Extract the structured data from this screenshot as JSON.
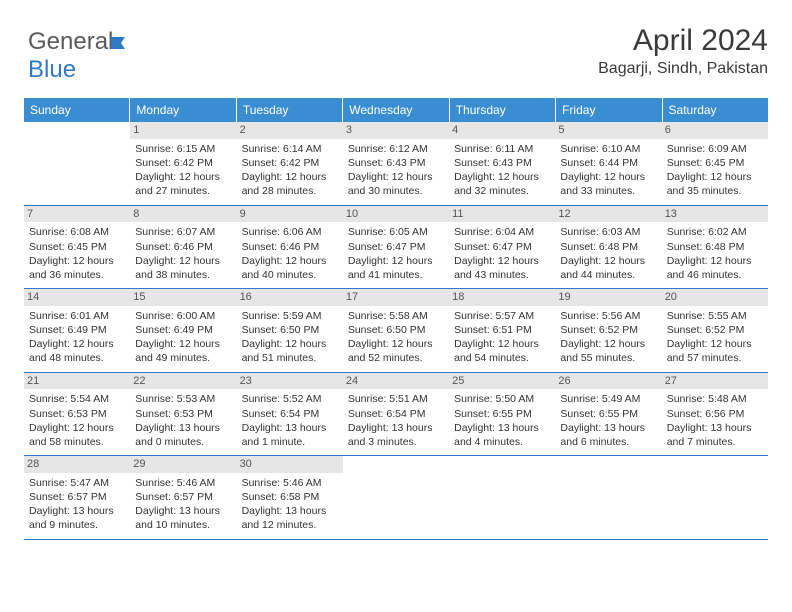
{
  "logo": {
    "part1": "General",
    "part2": "Blue"
  },
  "header": {
    "title": "April 2024",
    "location": "Bagarji, Sindh, Pakistan"
  },
  "colors": {
    "header_bg": "#3a8dd0",
    "daynum_bg": "#e6e6e6",
    "border": "#2f7ac5",
    "logo_blue": "#2f7ac5"
  },
  "day_names": [
    "Sunday",
    "Monday",
    "Tuesday",
    "Wednesday",
    "Thursday",
    "Friday",
    "Saturday"
  ],
  "weeks": [
    [
      {
        "n": "",
        "sr": "",
        "ss": "",
        "dl": ""
      },
      {
        "n": "1",
        "sr": "Sunrise: 6:15 AM",
        "ss": "Sunset: 6:42 PM",
        "dl": "Daylight: 12 hours and 27 minutes."
      },
      {
        "n": "2",
        "sr": "Sunrise: 6:14 AM",
        "ss": "Sunset: 6:42 PM",
        "dl": "Daylight: 12 hours and 28 minutes."
      },
      {
        "n": "3",
        "sr": "Sunrise: 6:12 AM",
        "ss": "Sunset: 6:43 PM",
        "dl": "Daylight: 12 hours and 30 minutes."
      },
      {
        "n": "4",
        "sr": "Sunrise: 6:11 AM",
        "ss": "Sunset: 6:43 PM",
        "dl": "Daylight: 12 hours and 32 minutes."
      },
      {
        "n": "5",
        "sr": "Sunrise: 6:10 AM",
        "ss": "Sunset: 6:44 PM",
        "dl": "Daylight: 12 hours and 33 minutes."
      },
      {
        "n": "6",
        "sr": "Sunrise: 6:09 AM",
        "ss": "Sunset: 6:45 PM",
        "dl": "Daylight: 12 hours and 35 minutes."
      }
    ],
    [
      {
        "n": "7",
        "sr": "Sunrise: 6:08 AM",
        "ss": "Sunset: 6:45 PM",
        "dl": "Daylight: 12 hours and 36 minutes."
      },
      {
        "n": "8",
        "sr": "Sunrise: 6:07 AM",
        "ss": "Sunset: 6:46 PM",
        "dl": "Daylight: 12 hours and 38 minutes."
      },
      {
        "n": "9",
        "sr": "Sunrise: 6:06 AM",
        "ss": "Sunset: 6:46 PM",
        "dl": "Daylight: 12 hours and 40 minutes."
      },
      {
        "n": "10",
        "sr": "Sunrise: 6:05 AM",
        "ss": "Sunset: 6:47 PM",
        "dl": "Daylight: 12 hours and 41 minutes."
      },
      {
        "n": "11",
        "sr": "Sunrise: 6:04 AM",
        "ss": "Sunset: 6:47 PM",
        "dl": "Daylight: 12 hours and 43 minutes."
      },
      {
        "n": "12",
        "sr": "Sunrise: 6:03 AM",
        "ss": "Sunset: 6:48 PM",
        "dl": "Daylight: 12 hours and 44 minutes."
      },
      {
        "n": "13",
        "sr": "Sunrise: 6:02 AM",
        "ss": "Sunset: 6:48 PM",
        "dl": "Daylight: 12 hours and 46 minutes."
      }
    ],
    [
      {
        "n": "14",
        "sr": "Sunrise: 6:01 AM",
        "ss": "Sunset: 6:49 PM",
        "dl": "Daylight: 12 hours and 48 minutes."
      },
      {
        "n": "15",
        "sr": "Sunrise: 6:00 AM",
        "ss": "Sunset: 6:49 PM",
        "dl": "Daylight: 12 hours and 49 minutes."
      },
      {
        "n": "16",
        "sr": "Sunrise: 5:59 AM",
        "ss": "Sunset: 6:50 PM",
        "dl": "Daylight: 12 hours and 51 minutes."
      },
      {
        "n": "17",
        "sr": "Sunrise: 5:58 AM",
        "ss": "Sunset: 6:50 PM",
        "dl": "Daylight: 12 hours and 52 minutes."
      },
      {
        "n": "18",
        "sr": "Sunrise: 5:57 AM",
        "ss": "Sunset: 6:51 PM",
        "dl": "Daylight: 12 hours and 54 minutes."
      },
      {
        "n": "19",
        "sr": "Sunrise: 5:56 AM",
        "ss": "Sunset: 6:52 PM",
        "dl": "Daylight: 12 hours and 55 minutes."
      },
      {
        "n": "20",
        "sr": "Sunrise: 5:55 AM",
        "ss": "Sunset: 6:52 PM",
        "dl": "Daylight: 12 hours and 57 minutes."
      }
    ],
    [
      {
        "n": "21",
        "sr": "Sunrise: 5:54 AM",
        "ss": "Sunset: 6:53 PM",
        "dl": "Daylight: 12 hours and 58 minutes."
      },
      {
        "n": "22",
        "sr": "Sunrise: 5:53 AM",
        "ss": "Sunset: 6:53 PM",
        "dl": "Daylight: 13 hours and 0 minutes."
      },
      {
        "n": "23",
        "sr": "Sunrise: 5:52 AM",
        "ss": "Sunset: 6:54 PM",
        "dl": "Daylight: 13 hours and 1 minute."
      },
      {
        "n": "24",
        "sr": "Sunrise: 5:51 AM",
        "ss": "Sunset: 6:54 PM",
        "dl": "Daylight: 13 hours and 3 minutes."
      },
      {
        "n": "25",
        "sr": "Sunrise: 5:50 AM",
        "ss": "Sunset: 6:55 PM",
        "dl": "Daylight: 13 hours and 4 minutes."
      },
      {
        "n": "26",
        "sr": "Sunrise: 5:49 AM",
        "ss": "Sunset: 6:55 PM",
        "dl": "Daylight: 13 hours and 6 minutes."
      },
      {
        "n": "27",
        "sr": "Sunrise: 5:48 AM",
        "ss": "Sunset: 6:56 PM",
        "dl": "Daylight: 13 hours and 7 minutes."
      }
    ],
    [
      {
        "n": "28",
        "sr": "Sunrise: 5:47 AM",
        "ss": "Sunset: 6:57 PM",
        "dl": "Daylight: 13 hours and 9 minutes."
      },
      {
        "n": "29",
        "sr": "Sunrise: 5:46 AM",
        "ss": "Sunset: 6:57 PM",
        "dl": "Daylight: 13 hours and 10 minutes."
      },
      {
        "n": "30",
        "sr": "Sunrise: 5:46 AM",
        "ss": "Sunset: 6:58 PM",
        "dl": "Daylight: 13 hours and 12 minutes."
      },
      {
        "n": "",
        "sr": "",
        "ss": "",
        "dl": ""
      },
      {
        "n": "",
        "sr": "",
        "ss": "",
        "dl": ""
      },
      {
        "n": "",
        "sr": "",
        "ss": "",
        "dl": ""
      },
      {
        "n": "",
        "sr": "",
        "ss": "",
        "dl": ""
      }
    ]
  ]
}
